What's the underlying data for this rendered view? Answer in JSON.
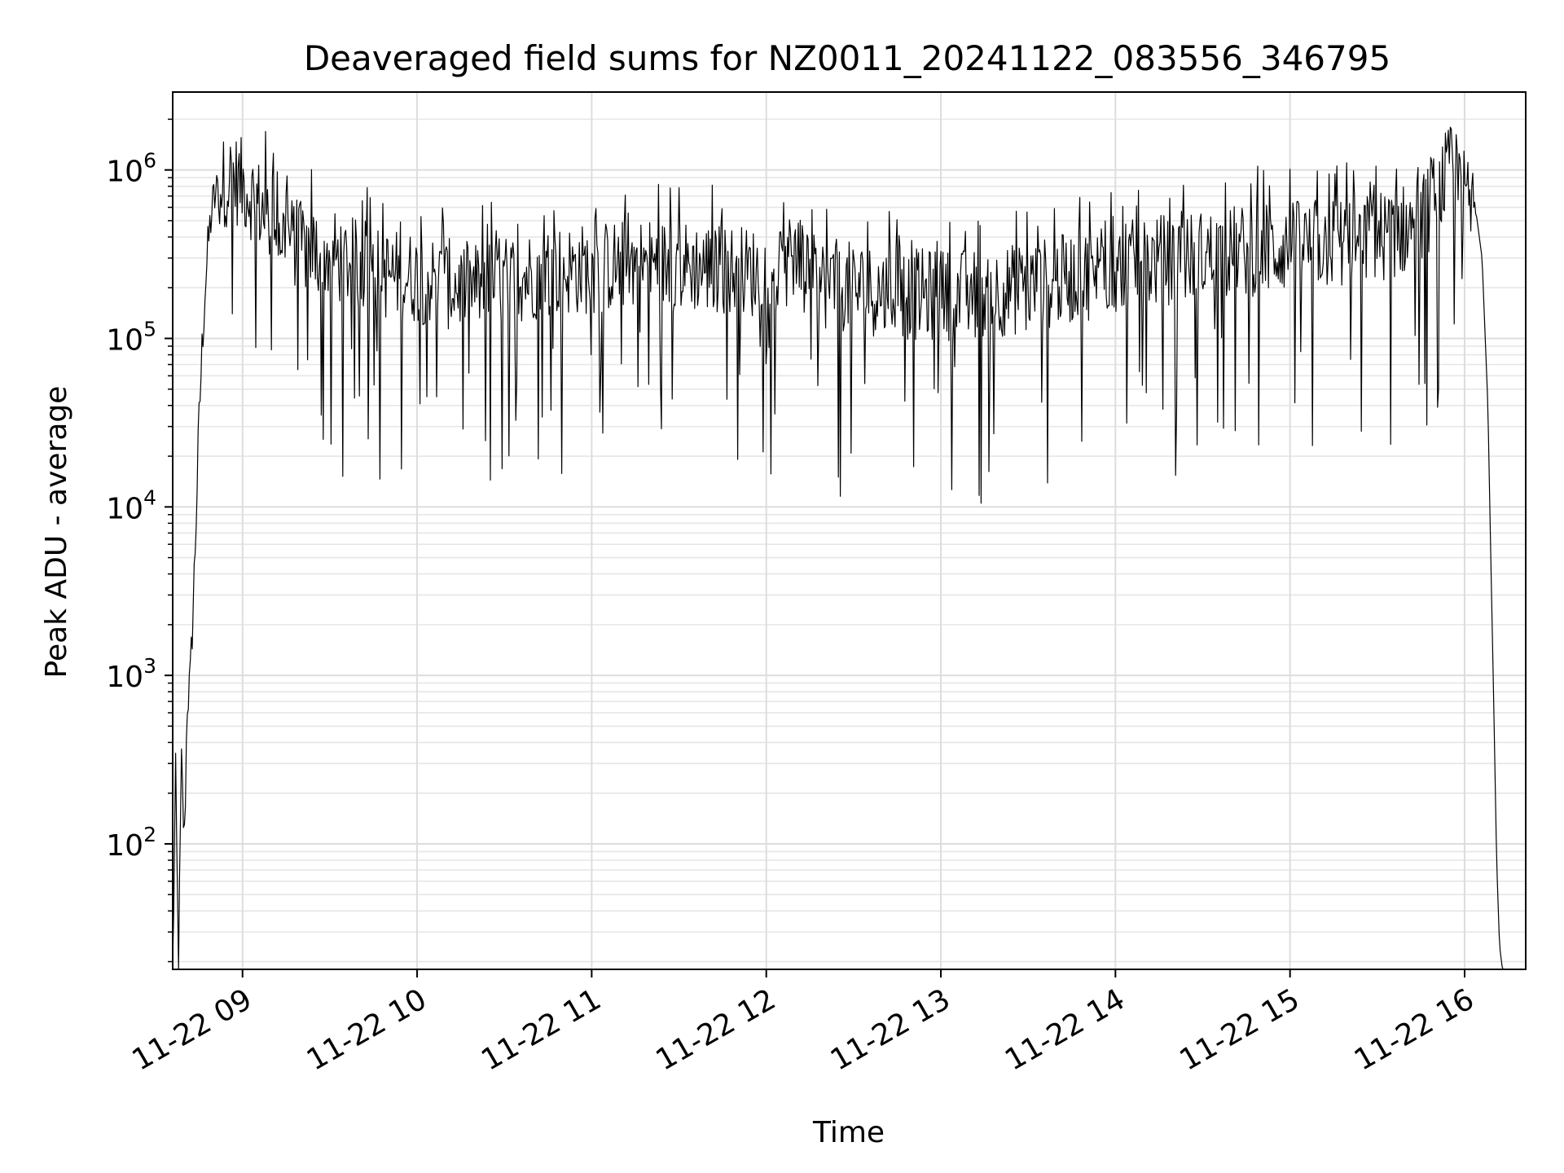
{
  "chart_data": {
    "type": "line",
    "title": "Deaveraged field sums for NZ0011_20241122_083556_346795",
    "xlabel": "Time",
    "ylabel": "Peak ADU - average",
    "yscale": "log",
    "grid": true,
    "legend": "none",
    "xlim": [
      "2024-11-22 08:36",
      "2024-11-22 16:21"
    ],
    "ylim": [
      18,
      2900000
    ],
    "x_tick_labels": [
      "11-22 09",
      "11-22 10",
      "11-22 11",
      "11-22 12",
      "11-22 13",
      "11-22 14",
      "11-22 15",
      "11-22 16"
    ],
    "y_tick_labels": [
      {
        "base": "10",
        "exp": "2"
      },
      {
        "base": "10",
        "exp": "3"
      },
      {
        "base": "10",
        "exp": "4"
      },
      {
        "base": "10",
        "exp": "5"
      },
      {
        "base": "10",
        "exp": "6"
      }
    ],
    "series": [
      {
        "color": "#000000",
        "x": [
          "2024-11-22 08:36",
          "2024-11-22 08:37",
          "2024-11-22 08:38",
          "2024-11-22 08:39",
          "2024-11-22 08:40",
          "2024-11-22 08:41",
          "2024-11-22 08:42",
          "2024-11-22 08:43",
          "2024-11-22 08:44",
          "2024-11-22 08:45",
          "2024-11-22 08:46",
          "2024-11-22 08:47",
          "2024-11-22 08:48",
          "2024-11-22 08:49",
          "2024-11-22 08:50",
          "2024-11-22 08:52",
          "2024-11-22 08:54",
          "2024-11-22 08:57",
          "2024-11-22 09:00",
          "2024-11-22 09:05",
          "2024-11-22 09:10",
          "2024-11-22 09:15",
          "2024-11-22 09:20",
          "2024-11-22 09:25",
          "2024-11-22 09:30",
          "2024-11-22 09:40",
          "2024-11-22 09:50",
          "2024-11-22 10:00",
          "2024-11-22 10:10",
          "2024-11-22 10:20",
          "2024-11-22 10:30",
          "2024-11-22 10:45",
          "2024-11-22 11:00",
          "2024-11-22 11:15",
          "2024-11-22 11:30",
          "2024-11-22 11:45",
          "2024-11-22 12:00",
          "2024-11-22 12:15",
          "2024-11-22 12:30",
          "2024-11-22 12:45",
          "2024-11-22 13:00",
          "2024-11-22 13:15",
          "2024-11-22 13:30",
          "2024-11-22 13:45",
          "2024-11-22 14:00",
          "2024-11-22 14:15",
          "2024-11-22 14:30",
          "2024-11-22 14:45",
          "2024-11-22 15:00",
          "2024-11-22 15:15",
          "2024-11-22 15:30",
          "2024-11-22 15:40",
          "2024-11-22 15:45",
          "2024-11-22 15:50",
          "2024-11-22 15:55",
          "2024-11-22 16:00",
          "2024-11-22 16:02",
          "2024-11-22 16:04",
          "2024-11-22 16:06",
          "2024-11-22 16:08",
          "2024-11-22 16:09",
          "2024-11-22 16:10",
          "2024-11-22 16:11",
          "2024-11-22 16:12",
          "2024-11-22 16:13"
        ],
        "y": [
          18,
          250,
          18,
          300,
          100,
          700,
          900,
          2500,
          8000,
          30000,
          80000,
          180000,
          320000,
          500000,
          650000,
          800000,
          850000,
          900000,
          820000,
          650000,
          480000,
          400000,
          350000,
          330000,
          310000,
          270000,
          240000,
          230000,
          210000,
          200000,
          220000,
          250000,
          260000,
          280000,
          270000,
          260000,
          240000,
          220000,
          200000,
          185000,
          180000,
          185000,
          200000,
          230000,
          260000,
          290000,
          310000,
          330000,
          350000,
          370000,
          400000,
          450000,
          480000,
          700000,
          1000000,
          700000,
          600000,
          550000,
          300000,
          40000,
          5000,
          700,
          80,
          25,
          18
        ]
      }
    ]
  }
}
